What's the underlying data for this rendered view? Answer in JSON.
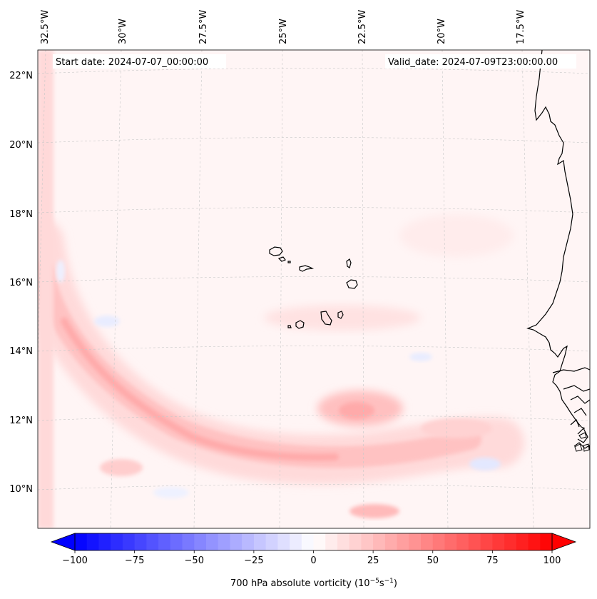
{
  "map": {
    "start_date": "Start date: 2024-07-07_00:00:00",
    "valid_date": "Valid_date: 2024-07-09T23:00:00.00",
    "projection": "Lambert conformal",
    "extent": {
      "lon": [
        -33,
        -15.4
      ],
      "lat": [
        8.9,
        22.8
      ]
    },
    "lon_labels": [
      "32.5°W",
      "30°W",
      "27.5°W",
      "25°W",
      "22.5°W",
      "20°W",
      "17.5°W"
    ],
    "lon_values": [
      -32.5,
      -30,
      -27.5,
      -25,
      -22.5,
      -20,
      -17.5
    ],
    "lat_labels": [
      "22°N",
      "20°N",
      "18°N",
      "16°N",
      "14°N",
      "12°N",
      "10°N"
    ],
    "lat_values": [
      22,
      20,
      18,
      16,
      14,
      12,
      10
    ],
    "islands": [
      "Santo Antão",
      "São Vicente",
      "São Nicolau",
      "Sal",
      "Boa Vista",
      "Maio",
      "Santiago",
      "Fogo",
      "Brava"
    ],
    "features": [
      {
        "name": "curved vorticity band",
        "value_approx": 15
      },
      {
        "name": "positive vorticity maximum near 12°N 23°W",
        "value_approx": 20
      }
    ]
  },
  "colorbar": {
    "label": "700 hPa absolute vorticity (10⁻⁵s⁻¹)",
    "label_prefix": "700 hPa absolute vorticity (10",
    "label_exp1": "−5",
    "label_mid": "s",
    "label_exp2": "−1",
    "label_suffix": ")",
    "min": -100,
    "max": 100,
    "step": 5,
    "ticks": [
      -100,
      -75,
      -50,
      -25,
      0,
      25,
      50,
      75,
      100
    ],
    "tick_labels": [
      "−100",
      "−75",
      "−50",
      "−25",
      "0",
      "25",
      "50",
      "75",
      "100"
    ],
    "colormap": "bwr",
    "low_color": "#0000ff",
    "mid_color": "#ffffff",
    "high_color": "#ff0000"
  }
}
